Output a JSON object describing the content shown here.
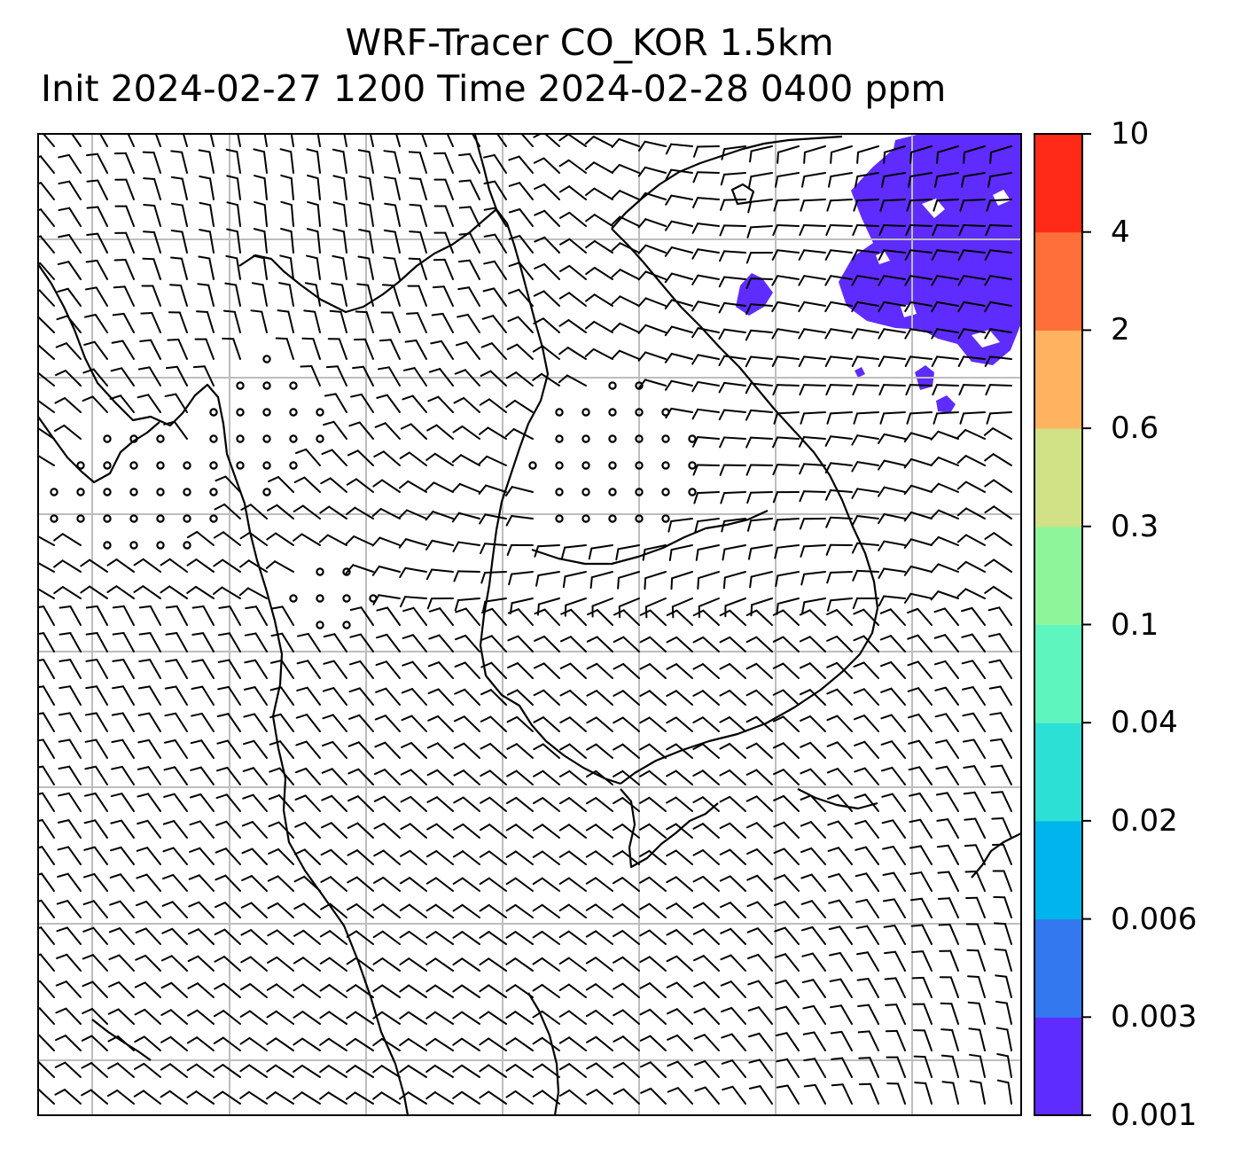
{
  "title": {
    "line1": "WRF-Tracer CO_KOR 1.5km",
    "line2": "Init 2024-02-27 1200 Time 2024-02-28 0400 ppm"
  },
  "colorbar": {
    "levels": [
      "0.001",
      "0.003",
      "0.006",
      "0.02",
      "0.04",
      "0.1",
      "0.3",
      "0.6",
      "2",
      "4",
      "10"
    ],
    "colors": [
      "#5f2cff",
      "#3478f0",
      "#00b4ec",
      "#2de0d6",
      "#5ff5bf",
      "#8ff59a",
      "#d0e285",
      "#ffb25f",
      "#ff6f3a",
      "#ff2a17"
    ]
  },
  "map": {
    "tracer_fill_color": "#5f2cff",
    "gridline_color": "#bdbdbd",
    "wind_barb_color": "#000000",
    "coastline_color": "#000000"
  }
}
